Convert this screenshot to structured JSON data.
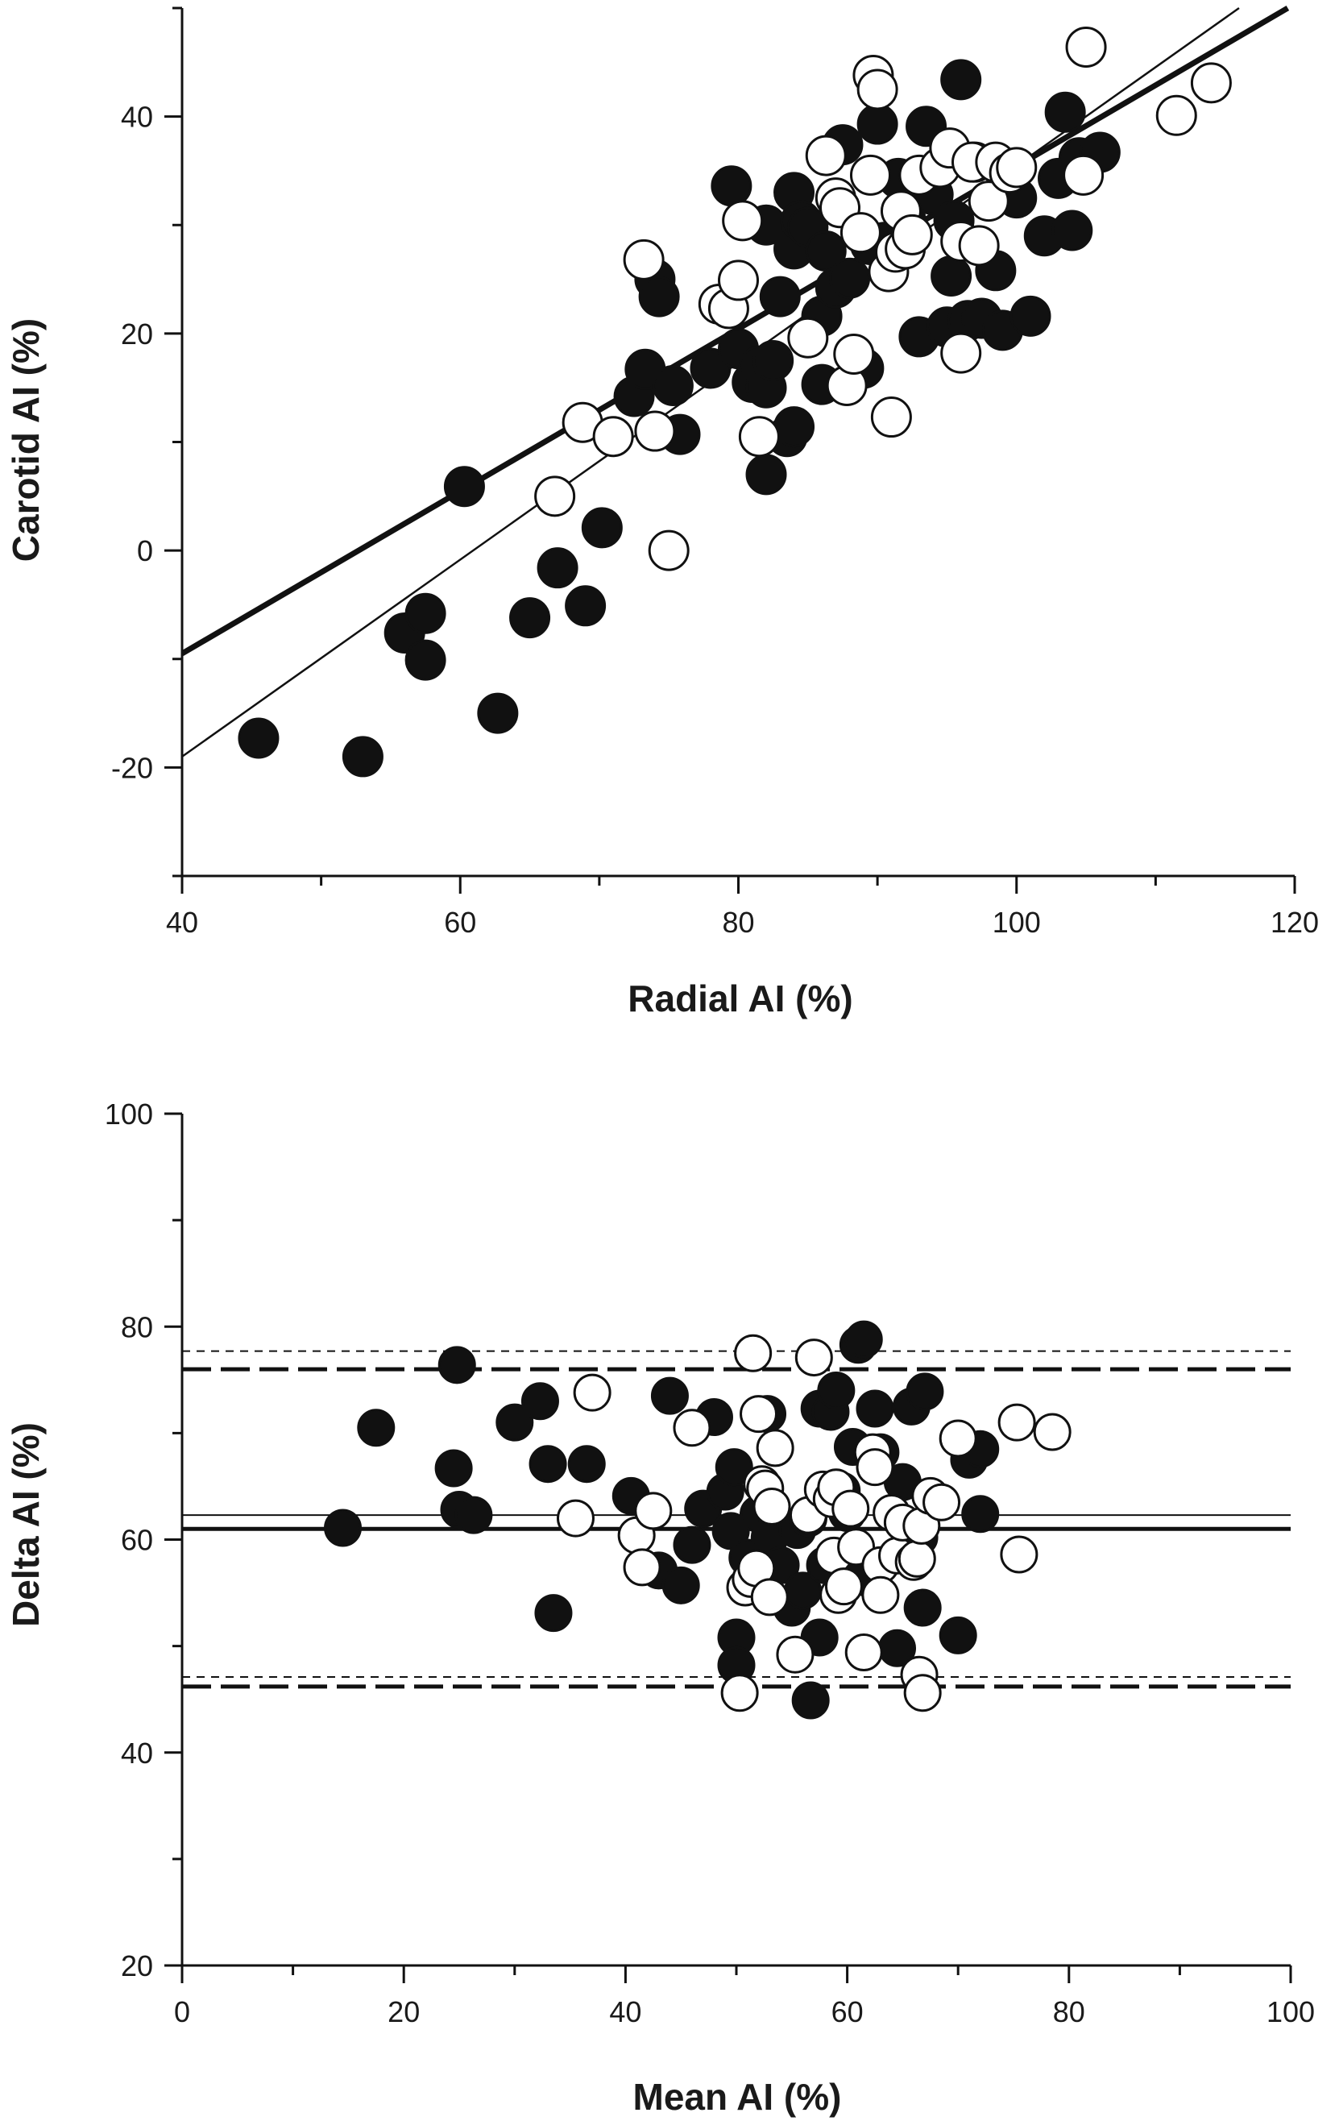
{
  "chart_data": [
    {
      "type": "scatter",
      "title": "",
      "xlabel": "Radial AI (%)",
      "ylabel": "Carotid AI (%)",
      "xlim": [
        40,
        120
      ],
      "ylim": [
        -30,
        50
      ],
      "x_ticks": [
        40,
        60,
        80,
        100,
        120
      ],
      "y_ticks": [
        -20,
        0,
        20,
        40
      ],
      "grid": false,
      "legend": "none",
      "series": [
        {
          "marker": "filled-circle",
          "color": "#111111",
          "points": [
            [
              45.5,
              -17.3
            ],
            [
              53,
              -19
            ],
            [
              56,
              -7.6
            ],
            [
              57.5,
              -5.8
            ],
            [
              57.5,
              -10.1
            ],
            [
              60.3,
              5.9
            ],
            [
              62.7,
              -15
            ],
            [
              65,
              -6.2
            ],
            [
              67,
              -1.6
            ],
            [
              69,
              -5.1
            ],
            [
              70.2,
              2.1
            ],
            [
              72.5,
              14.2
            ],
            [
              73.3,
              16.7
            ],
            [
              74,
              25
            ],
            [
              74.3,
              23.4
            ],
            [
              75.3,
              15.2
            ],
            [
              75.8,
              10.7
            ],
            [
              78,
              16.8
            ],
            [
              79.5,
              33.6
            ],
            [
              80,
              18.6
            ],
            [
              81,
              15.5
            ],
            [
              81.5,
              17
            ],
            [
              82,
              7
            ],
            [
              82,
              15
            ],
            [
              82,
              30
            ],
            [
              82.5,
              17.5
            ],
            [
              83,
              23.4
            ],
            [
              83.5,
              10.5
            ],
            [
              84,
              11.4
            ],
            [
              84,
              27.8
            ],
            [
              84,
              33
            ],
            [
              84.5,
              30.4
            ],
            [
              85,
              29.8
            ],
            [
              86,
              15.3
            ],
            [
              86,
              21.6
            ],
            [
              86.3,
              27.6
            ],
            [
              87,
              24.2
            ],
            [
              87.5,
              37.4
            ],
            [
              88,
              25.1
            ],
            [
              89,
              16.8
            ],
            [
              89.5,
              28.2
            ],
            [
              90,
              39.3
            ],
            [
              90.5,
              28.4
            ],
            [
              91.5,
              34.3
            ],
            [
              92,
              30.7
            ],
            [
              93,
              19.7
            ],
            [
              93.5,
              39.1
            ],
            [
              94,
              32.8
            ],
            [
              95,
              20.6
            ],
            [
              95.3,
              25.3
            ],
            [
              95.5,
              30.4
            ],
            [
              96,
              43.4
            ],
            [
              96.5,
              21.2
            ],
            [
              97,
              35.8
            ],
            [
              97.5,
              21.4
            ],
            [
              98.5,
              25.8
            ],
            [
              99,
              20.3
            ],
            [
              100,
              32.5
            ],
            [
              101,
              21.6
            ],
            [
              102,
              29
            ],
            [
              103,
              34.3
            ],
            [
              103.5,
              40.4
            ],
            [
              104,
              29.5
            ],
            [
              104.5,
              36.2
            ],
            [
              106,
              36.7
            ]
          ]
        },
        {
          "marker": "open-circle",
          "color": "#111111",
          "points": [
            [
              66.8,
              5
            ],
            [
              68.8,
              11.8
            ],
            [
              71,
              10.5
            ],
            [
              73.2,
              26.8
            ],
            [
              74,
              11
            ],
            [
              75,
              0
            ],
            [
              78.6,
              22.7
            ],
            [
              79.3,
              22.3
            ],
            [
              80,
              24.9
            ],
            [
              80.3,
              30.4
            ],
            [
              81.5,
              10.5
            ],
            [
              85,
              19.6
            ],
            [
              86.3,
              36.4
            ],
            [
              87,
              32.5
            ],
            [
              87.3,
              31.6
            ],
            [
              87.8,
              15.2
            ],
            [
              88.3,
              18.1
            ],
            [
              88.8,
              29.3
            ],
            [
              89.5,
              34.6
            ],
            [
              89.7,
              43.8
            ],
            [
              90,
              42.5
            ],
            [
              90.8,
              25.7
            ],
            [
              91,
              12.3
            ],
            [
              91.3,
              27.5
            ],
            [
              91.7,
              31.3
            ],
            [
              92,
              27.8
            ],
            [
              92.5,
              29.1
            ],
            [
              93,
              34.6
            ],
            [
              94.5,
              35.3
            ],
            [
              95.2,
              37.1
            ],
            [
              96,
              18.2
            ],
            [
              96,
              28.5
            ],
            [
              96.8,
              35.8
            ],
            [
              97.3,
              28.1
            ],
            [
              98,
              32.2
            ],
            [
              98.5,
              35.8
            ],
            [
              99.5,
              34.8
            ],
            [
              100,
              35.3
            ],
            [
              104.8,
              34.6
            ],
            [
              105,
              46.4
            ],
            [
              111.5,
              40.1
            ],
            [
              114,
              43.1
            ]
          ]
        }
      ],
      "regression_lines": [
        {
          "style": "thick-solid",
          "x": [
            40,
            119.5
          ],
          "y": [
            -9.5,
            50
          ]
        },
        {
          "style": "thin-solid",
          "x": [
            40,
            116
          ],
          "y": [
            -19,
            50
          ]
        }
      ]
    },
    {
      "type": "scatter",
      "title": "",
      "xlabel": "Mean AI (%)",
      "ylabel": "Delta AI (%)",
      "xlim": [
        0,
        100
      ],
      "ylim": [
        20,
        100
      ],
      "x_ticks": [
        0,
        20,
        40,
        60,
        80,
        100
      ],
      "y_ticks": [
        20,
        40,
        60,
        80,
        100
      ],
      "grid": false,
      "legend": "none",
      "series": [
        {
          "marker": "filled-circle",
          "color": "#111111",
          "points": [
            [
              14.5,
              61.1
            ],
            [
              17.5,
              70.5
            ],
            [
              24.5,
              66.7
            ],
            [
              24.8,
              76.4
            ],
            [
              25,
              62.8
            ],
            [
              26.3,
              62.3
            ],
            [
              30,
              71
            ],
            [
              32.3,
              73
            ],
            [
              33,
              67.1
            ],
            [
              33.5,
              53.1
            ],
            [
              36.5,
              67.1
            ],
            [
              40.5,
              64.1
            ],
            [
              43,
              57.1
            ],
            [
              44,
              73.5
            ],
            [
              45,
              55.7
            ],
            [
              46,
              59.5
            ],
            [
              47,
              62.9
            ],
            [
              48,
              71.5
            ],
            [
              49,
              64.5
            ],
            [
              49.5,
              60.8
            ],
            [
              49.8,
              66.8
            ],
            [
              50,
              50.8
            ],
            [
              50,
              48.2
            ],
            [
              51,
              58.3
            ],
            [
              52,
              62.4
            ],
            [
              52.8,
              71.8
            ],
            [
              53,
              60.2
            ],
            [
              54,
              57.6
            ],
            [
              55,
              53.6
            ],
            [
              55.5,
              60.9
            ],
            [
              56,
              55.2
            ],
            [
              56.5,
              62
            ],
            [
              56.7,
              44.9
            ],
            [
              57.5,
              72.3
            ],
            [
              58,
              57.6
            ],
            [
              58.5,
              72
            ],
            [
              59,
              74
            ],
            [
              59.5,
              64.6
            ],
            [
              60,
              62.5
            ],
            [
              60.5,
              68.7
            ],
            [
              61,
              78.3
            ],
            [
              61.5,
              78.8
            ],
            [
              62,
              56.3
            ],
            [
              62.5,
              72.3
            ],
            [
              63,
              68.2
            ],
            [
              64.5,
              49.8
            ],
            [
              65,
              65.4
            ],
            [
              65.8,
              72.5
            ],
            [
              66.5,
              60.2
            ],
            [
              66.8,
              53.6
            ],
            [
              67,
              73.9
            ],
            [
              70,
              51
            ],
            [
              71,
              67.5
            ],
            [
              72,
              68.5
            ],
            [
              72,
              62.4
            ],
            [
              61.5,
              56.5
            ],
            [
              57.5,
              50.8
            ]
          ]
        },
        {
          "marker": "open-circle",
          "color": "#111111",
          "points": [
            [
              35.5,
              62
            ],
            [
              37,
              73.8
            ],
            [
              41,
              60.4
            ],
            [
              41.5,
              57.4
            ],
            [
              42.5,
              62.7
            ],
            [
              46,
              70.5
            ],
            [
              50.3,
              45.6
            ],
            [
              50.8,
              55.5
            ],
            [
              51.3,
              56.3
            ],
            [
              51.5,
              77.5
            ],
            [
              51.8,
              57.3
            ],
            [
              52,
              71.8
            ],
            [
              52.3,
              65.2
            ],
            [
              52.6,
              64.8
            ],
            [
              53,
              54.6
            ],
            [
              53.2,
              63.1
            ],
            [
              53.5,
              68.6
            ],
            [
              55.3,
              49.2
            ],
            [
              56.5,
              62.3
            ],
            [
              57,
              77.1
            ],
            [
              57.8,
              64.7
            ],
            [
              58.6,
              63.8
            ],
            [
              58.8,
              58.5
            ],
            [
              59,
              64.9
            ],
            [
              59.2,
              54.8
            ],
            [
              59.7,
              55.6
            ],
            [
              60.3,
              62.9
            ],
            [
              60.8,
              59.3
            ],
            [
              61.5,
              49.4
            ],
            [
              62.3,
              68.2
            ],
            [
              62.5,
              66.8
            ],
            [
              63,
              57.6
            ],
            [
              63,
              54.8
            ],
            [
              64,
              62.5
            ],
            [
              64.5,
              58.5
            ],
            [
              65,
              61.6
            ],
            [
              66,
              57.9
            ],
            [
              66.3,
              58.2
            ],
            [
              66.7,
              61.3
            ],
            [
              66.5,
              47.3
            ],
            [
              66.8,
              45.6
            ],
            [
              67.5,
              64.1
            ],
            [
              68.5,
              63.5
            ],
            [
              70,
              69.5
            ],
            [
              75.3,
              71
            ],
            [
              75.5,
              58.6
            ],
            [
              78.5,
              70.1
            ]
          ]
        }
      ],
      "reference_lines": [
        {
          "style": "thick-solid",
          "y": 61
        },
        {
          "style": "thin-solid",
          "y": 62.3
        },
        {
          "style": "thick-long-dash",
          "y": 76
        },
        {
          "style": "thin-short-dash",
          "y": 77.7
        },
        {
          "style": "thick-long-dash",
          "y": 46.2
        },
        {
          "style": "thin-short-dash",
          "y": 47.1
        }
      ]
    }
  ]
}
